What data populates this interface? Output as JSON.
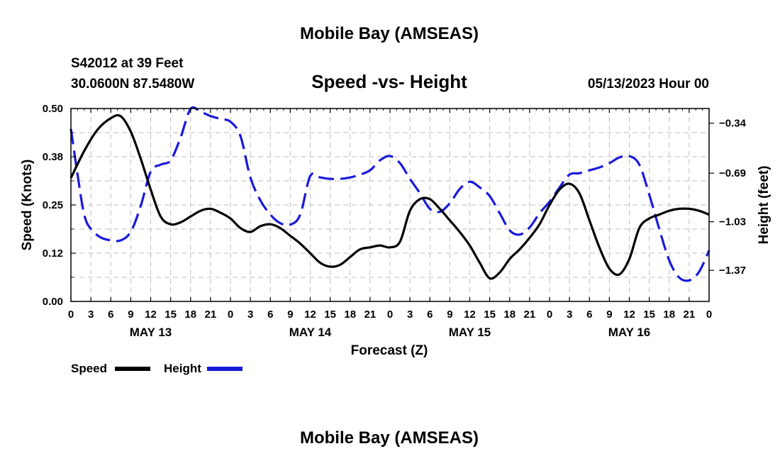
{
  "chart_data": {
    "type": "line",
    "title": "Mobile Bay (AMSEAS)",
    "subtitle": "Speed -vs- Height",
    "station": "S42012 at 39 Feet",
    "coordinates": "30.0600N  87.5480W",
    "datetime": "05/13/2023 Hour 00",
    "footer_title": "Mobile Bay (AMSEAS)",
    "xlabel": "Forecast (Z)",
    "ylabel": "Speed (Knots)",
    "y2label": "Height (feet)",
    "ylim": [
      0,
      0.5
    ],
    "y2lim": [
      -1.5875,
      -0.2375
    ],
    "xlim": [
      0,
      96
    ],
    "yticks": [
      "0.00",
      "0.12",
      "0.25",
      "0.38",
      "0.50"
    ],
    "y2ticks": [
      "-0.34",
      "-0.69",
      "-1.03",
      "-1.37"
    ],
    "xtick_labels": [
      "0",
      "3",
      "6",
      "9",
      "12",
      "15",
      "18",
      "21",
      "0",
      "3",
      "6",
      "9",
      "12",
      "15",
      "18",
      "21",
      "0",
      "3",
      "6",
      "9",
      "12",
      "15",
      "18",
      "21",
      "0",
      "3",
      "6",
      "9",
      "12",
      "15",
      "18",
      "21",
      "0"
    ],
    "day_labels": [
      {
        "label": "MAY 13",
        "hour": 12
      },
      {
        "label": "MAY 14",
        "hour": 36
      },
      {
        "label": "MAY 15",
        "hour": 60
      },
      {
        "label": "MAY 16",
        "hour": 84
      }
    ],
    "series": [
      {
        "name": "Speed",
        "axis": "left",
        "color": "#000000",
        "style": "solid",
        "x": [
          0,
          2,
          4,
          6,
          7.5,
          9,
          10.5,
          12,
          13.5,
          15,
          16.5,
          18,
          19.5,
          21,
          22.5,
          24,
          25.5,
          27,
          28.5,
          30,
          31.5,
          33,
          34.5,
          36,
          37.5,
          39,
          40.5,
          42,
          43.5,
          45,
          46.5,
          48,
          49.5,
          51,
          52.5,
          54,
          55.5,
          57,
          58.5,
          60,
          61.5,
          63,
          64.5,
          66,
          67.5,
          69,
          70.5,
          72,
          73.5,
          75,
          76.5,
          78,
          79.5,
          81,
          82.5,
          84,
          85.5,
          87,
          88.5,
          90,
          91.5,
          93,
          94.5,
          96
        ],
        "values": [
          0.32,
          0.39,
          0.445,
          0.475,
          0.48,
          0.44,
          0.37,
          0.29,
          0.22,
          0.2,
          0.205,
          0.22,
          0.235,
          0.24,
          0.23,
          0.215,
          0.19,
          0.18,
          0.195,
          0.2,
          0.19,
          0.17,
          0.15,
          0.125,
          0.1,
          0.09,
          0.095,
          0.115,
          0.135,
          0.14,
          0.145,
          0.14,
          0.155,
          0.235,
          0.265,
          0.265,
          0.24,
          0.21,
          0.18,
          0.145,
          0.1,
          0.06,
          0.075,
          0.11,
          0.135,
          0.165,
          0.2,
          0.25,
          0.29,
          0.305,
          0.28,
          0.21,
          0.14,
          0.085,
          0.07,
          0.11,
          0.19,
          0.215,
          0.225,
          0.235,
          0.24,
          0.24,
          0.235,
          0.225
        ]
      },
      {
        "name": "Height",
        "axis": "right",
        "color": "#1a1adc",
        "style": "dashed",
        "x": [
          0,
          1,
          2,
          3,
          4.5,
          6,
          7.5,
          9,
          10.5,
          12,
          13.5,
          15,
          16.5,
          18,
          19.5,
          21,
          22.5,
          24,
          25.5,
          27,
          28.5,
          30,
          31.5,
          33,
          34.5,
          36,
          37.5,
          39,
          40.5,
          42,
          43.5,
          45,
          46.5,
          48,
          49.5,
          51,
          52.5,
          54,
          55.5,
          57,
          58.5,
          60,
          61.5,
          63,
          64.5,
          66,
          67.5,
          69,
          70.5,
          72,
          73.5,
          75,
          76.5,
          78,
          79.5,
          81,
          82.5,
          84,
          85.5,
          87,
          88.5,
          90,
          91.5,
          93,
          94.5,
          96
        ],
        "values": [
          -0.38,
          -0.7,
          -0.98,
          -1.08,
          -1.14,
          -1.16,
          -1.16,
          -1.1,
          -0.92,
          -0.68,
          -0.63,
          -0.6,
          -0.44,
          -0.24,
          -0.26,
          -0.29,
          -0.31,
          -0.33,
          -0.43,
          -0.72,
          -0.88,
          -0.98,
          -1.04,
          -1.05,
          -0.98,
          -0.71,
          -0.72,
          -0.73,
          -0.73,
          -0.72,
          -0.7,
          -0.67,
          -0.6,
          -0.57,
          -0.62,
          -0.73,
          -0.83,
          -0.94,
          -0.96,
          -0.9,
          -0.8,
          -0.75,
          -0.79,
          -0.85,
          -0.97,
          -1.09,
          -1.12,
          -1.07,
          -0.97,
          -0.89,
          -0.79,
          -0.7,
          -0.69,
          -0.67,
          -0.65,
          -0.62,
          -0.58,
          -0.57,
          -0.63,
          -0.84,
          -1.08,
          -1.3,
          -1.42,
          -1.44,
          -1.38,
          -1.23
        ]
      }
    ],
    "legend": [
      {
        "label": "Speed",
        "color": "#000000"
      },
      {
        "label": "Height",
        "color": "#1a1adc"
      }
    ],
    "legend_position": "bottom-left",
    "grid": true
  }
}
